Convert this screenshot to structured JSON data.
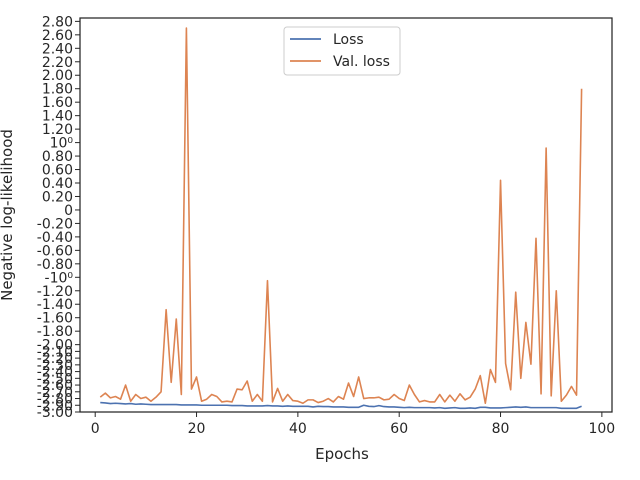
{
  "chart_data": {
    "type": "line",
    "xlabel": "Epochs",
    "ylabel": "Negative log-likelihood",
    "xlim": [
      -3,
      102
    ],
    "x_ticks": [
      0,
      20,
      40,
      60,
      80,
      100
    ],
    "x_tick_labels": [
      "0",
      "20",
      "40",
      "60",
      "80",
      "100"
    ],
    "y_scale": "symlog",
    "ylim": [
      -3.0,
      2.85
    ],
    "y_ticks": [
      -3.0,
      -2.9,
      -2.8,
      -2.7,
      -2.6,
      -2.5,
      -2.4,
      -2.3,
      -2.2,
      -2.1,
      -2.0,
      -1.8,
      -1.6,
      -1.4,
      -1.2,
      -1.0,
      -0.8,
      -0.6,
      -0.4,
      -0.2,
      0.0,
      0.2,
      0.4,
      0.6,
      0.8,
      1.0,
      1.2,
      1.4,
      1.6,
      1.8,
      2.0,
      2.2,
      2.4,
      2.6,
      2.8
    ],
    "y_tick_labels": [
      "-3.00",
      "-2.90",
      "-2.80",
      "-2.70",
      "-2.60",
      "-2.50",
      "-2.40",
      "-2.30",
      "-2.20",
      "-2.10",
      "-2.00",
      "-1.80",
      "-1.60",
      "-1.40",
      "-1.20",
      "-10⁰",
      "-0.80",
      "-0.60",
      "-0.40",
      "-0.20",
      "0",
      "0.20",
      "0.40",
      "0.60",
      "0.80",
      "10⁰",
      "1.20",
      "1.40",
      "1.60",
      "1.80",
      "2.00",
      "2.20",
      "2.40",
      "2.60",
      "2.80"
    ],
    "legend_position": "upper-center",
    "grid": false,
    "x": [
      1,
      2,
      3,
      4,
      5,
      6,
      7,
      8,
      9,
      10,
      11,
      12,
      13,
      14,
      15,
      16,
      17,
      18,
      19,
      20,
      21,
      22,
      23,
      24,
      25,
      26,
      27,
      28,
      29,
      30,
      31,
      32,
      33,
      34,
      35,
      36,
      37,
      38,
      39,
      40,
      41,
      42,
      43,
      44,
      45,
      46,
      47,
      48,
      49,
      50,
      51,
      52,
      53,
      54,
      55,
      56,
      57,
      58,
      59,
      60,
      61,
      62,
      63,
      64,
      65,
      66,
      67,
      68,
      69,
      70,
      71,
      72,
      73,
      74,
      75,
      76,
      77,
      78,
      79,
      80,
      81,
      82,
      83,
      84,
      85,
      86,
      87,
      88,
      89,
      90,
      91,
      92,
      93,
      94,
      95,
      96
    ],
    "series": [
      {
        "name": "Loss",
        "color": "#4c72b0",
        "values": [
          -2.86,
          -2.865,
          -2.875,
          -2.87,
          -2.875,
          -2.88,
          -2.875,
          -2.885,
          -2.88,
          -2.885,
          -2.89,
          -2.89,
          -2.89,
          -2.89,
          -2.89,
          -2.89,
          -2.895,
          -2.895,
          -2.895,
          -2.895,
          -2.9,
          -2.9,
          -2.9,
          -2.9,
          -2.9,
          -2.9,
          -2.905,
          -2.905,
          -2.905,
          -2.91,
          -2.91,
          -2.91,
          -2.91,
          -2.905,
          -2.91,
          -2.91,
          -2.915,
          -2.91,
          -2.915,
          -2.915,
          -2.915,
          -2.915,
          -2.925,
          -2.915,
          -2.92,
          -2.92,
          -2.925,
          -2.925,
          -2.925,
          -2.93,
          -2.93,
          -2.93,
          -2.9,
          -2.915,
          -2.92,
          -2.905,
          -2.92,
          -2.925,
          -2.925,
          -2.93,
          -2.935,
          -2.93,
          -2.935,
          -2.935,
          -2.935,
          -2.935,
          -2.94,
          -2.935,
          -2.945,
          -2.94,
          -2.935,
          -2.945,
          -2.945,
          -2.94,
          -2.945,
          -2.93,
          -2.93,
          -2.94,
          -2.94,
          -2.94,
          -2.935,
          -2.93,
          -2.925,
          -2.93,
          -2.925,
          -2.935,
          -2.935,
          -2.935,
          -2.935,
          -2.935,
          -2.935,
          -2.945,
          -2.945,
          -2.945,
          -2.945,
          -2.915
        ]
      },
      {
        "name": "Val. loss",
        "color": "#dd8452",
        "values": [
          -2.78,
          -2.72,
          -2.79,
          -2.77,
          -2.81,
          -2.6,
          -2.84,
          -2.74,
          -2.8,
          -2.78,
          -2.84,
          -2.78,
          -2.7,
          -1.48,
          -2.56,
          -1.62,
          -2.74,
          2.7,
          -2.66,
          -2.48,
          -2.84,
          -2.81,
          -2.74,
          -2.77,
          -2.85,
          -2.84,
          -2.85,
          -2.66,
          -2.67,
          -2.54,
          -2.84,
          -2.74,
          -2.84,
          -1.05,
          -2.85,
          -2.65,
          -2.84,
          -2.74,
          -2.83,
          -2.84,
          -2.87,
          -2.82,
          -2.82,
          -2.86,
          -2.84,
          -2.8,
          -2.85,
          -2.77,
          -2.81,
          -2.57,
          -2.77,
          -2.48,
          -2.8,
          -2.79,
          -2.79,
          -2.78,
          -2.82,
          -2.81,
          -2.74,
          -2.8,
          -2.83,
          -2.6,
          -2.74,
          -2.85,
          -2.83,
          -2.85,
          -2.85,
          -2.74,
          -2.85,
          -2.75,
          -2.84,
          -2.73,
          -2.82,
          -2.78,
          -2.66,
          -2.46,
          -2.87,
          -2.37,
          -2.56,
          0.44,
          -2.28,
          -2.67,
          -1.22,
          -2.5,
          -1.67,
          -2.29,
          -0.42,
          -2.73,
          0.92,
          -2.76,
          -1.2,
          -2.84,
          -2.75,
          -2.62,
          -2.75,
          1.8
        ]
      }
    ]
  }
}
